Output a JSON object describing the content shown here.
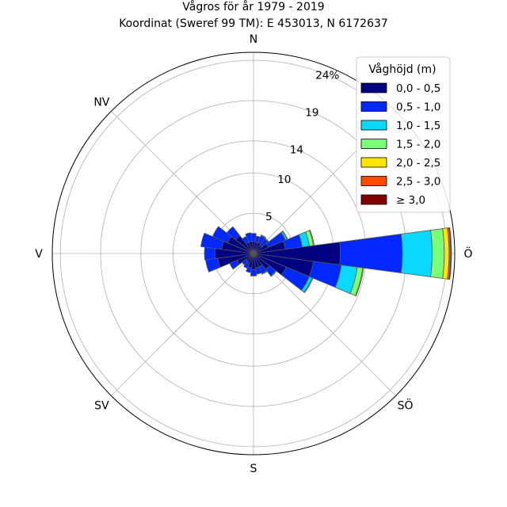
{
  "chart_data": {
    "type": "windrose",
    "title": "Vågros för år 1979 - 2019",
    "subtitle": "Koordinat (Sweref 99 TM): E 453013, N 6172637",
    "direction_labels": [
      "N",
      "NV",
      "V",
      "SV",
      "S",
      "SÖ",
      "Ö"
    ],
    "radial_axis": {
      "unit": "%",
      "max": 25,
      "ticks": [
        5,
        10,
        14,
        19,
        24
      ],
      "tick_labels": [
        "5",
        "10",
        "14",
        "19",
        "24%"
      ]
    },
    "legend": {
      "title": "Våghöjd (m)",
      "placement": "top-right"
    },
    "bins": [
      {
        "label": "0,0 - 0,5",
        "color": "#000080"
      },
      {
        "label": "0,5 - 1,0",
        "color": "#0028ff"
      },
      {
        "label": "1,0 - 1,5",
        "color": "#0ad8ff"
      },
      {
        "label": "1,5 - 2,0",
        "color": "#7bff7b"
      },
      {
        "label": "2,0 - 2,5",
        "color": "#ffe500"
      },
      {
        "label": "2,5 - 3,0",
        "color": "#ff4a00"
      },
      {
        "label": "≥ 3,0",
        "color": "#800000"
      }
    ],
    "sector_width_deg": 15,
    "sectors": [
      {
        "dir_deg": 0,
        "cumulative": [
          1.5,
          2.5
        ]
      },
      {
        "dir_deg": 15,
        "cumulative": [
          1.4,
          2.2
        ]
      },
      {
        "dir_deg": 30,
        "cumulative": [
          1.5,
          2.4,
          2.5
        ]
      },
      {
        "dir_deg": 45,
        "cumulative": [
          1.3,
          2.3,
          2.4
        ]
      },
      {
        "dir_deg": 60,
        "cumulative": [
          2.0,
          4.3,
          4.5,
          4.6
        ]
      },
      {
        "dir_deg": 75,
        "cumulative": [
          4.0,
          6.1,
          7.0,
          7.5,
          7.6
        ]
      },
      {
        "dir_deg": 90,
        "cumulative": [
          10.8,
          18.5,
          22.2,
          23.7,
          24.3,
          24.5,
          24.6
        ]
      },
      {
        "dir_deg": 105,
        "cumulative": [
          7.5,
          11.0,
          13.0,
          13.7,
          13.8
        ]
      },
      {
        "dir_deg": 120,
        "cumulative": [
          4.4,
          7.5,
          7.9,
          8.0
        ]
      },
      {
        "dir_deg": 135,
        "cumulative": [
          2.5,
          3.5,
          3.6
        ]
      },
      {
        "dir_deg": 150,
        "cumulative": [
          1.8,
          2.7,
          2.8
        ]
      },
      {
        "dir_deg": 165,
        "cumulative": [
          1.8,
          2.6
        ]
      },
      {
        "dir_deg": 180,
        "cumulative": [
          2.0,
          2.8
        ]
      },
      {
        "dir_deg": 195,
        "cumulative": [
          1.8,
          2.4
        ]
      },
      {
        "dir_deg": 210,
        "cumulative": [
          1.3,
          2.0
        ]
      },
      {
        "dir_deg": 225,
        "cumulative": [
          1.2,
          1.8
        ]
      },
      {
        "dir_deg": 240,
        "cumulative": [
          2.2,
          3.2
        ]
      },
      {
        "dir_deg": 255,
        "cumulative": [
          4.5,
          6.0
        ]
      },
      {
        "dir_deg": 270,
        "cumulative": [
          4.8,
          6.1
        ]
      },
      {
        "dir_deg": 285,
        "cumulative": [
          4.0,
          6.6
        ]
      },
      {
        "dir_deg": 300,
        "cumulative": [
          3.5,
          5.5
        ]
      },
      {
        "dir_deg": 315,
        "cumulative": [
          2.8,
          4.2
        ]
      },
      {
        "dir_deg": 330,
        "cumulative": [
          1.5,
          2.3
        ]
      },
      {
        "dir_deg": 345,
        "cumulative": [
          1.5,
          2.6
        ]
      }
    ],
    "grid": true
  }
}
